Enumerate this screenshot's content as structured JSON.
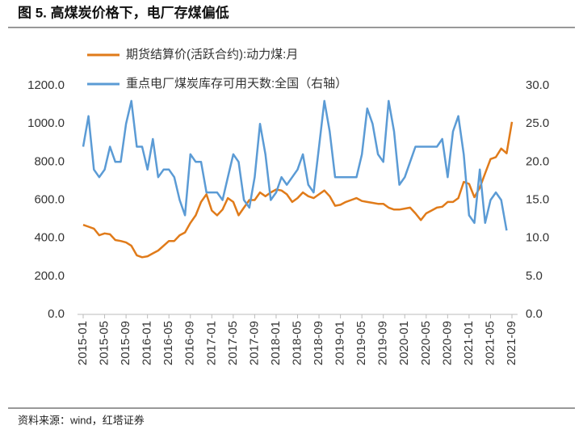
{
  "chart_data": {
    "type": "line",
    "title": "图 5. 高煤炭价格下，电厂存煤偏低",
    "source": "资料来源：wind，红塔证券",
    "categories": [
      "2015-01",
      null,
      null,
      null,
      "2015-05",
      null,
      null,
      null,
      "2015-09",
      null,
      null,
      null,
      "2016-01",
      null,
      null,
      null,
      "2016-05",
      null,
      null,
      null,
      "2016-09",
      null,
      null,
      null,
      "2017-01",
      null,
      null,
      null,
      "2017-05",
      null,
      null,
      null,
      "2017-09",
      null,
      null,
      null,
      "2018-01",
      null,
      null,
      null,
      "2018-05",
      null,
      null,
      null,
      "2018-09",
      null,
      null,
      null,
      "2019-01",
      null,
      null,
      null,
      "2019-05",
      null,
      null,
      null,
      "2019-09",
      null,
      null,
      null,
      "2020-01",
      null,
      null,
      null,
      "2020-05",
      null,
      null,
      null,
      "2020-09",
      null,
      null,
      null,
      "2021-01",
      null,
      null,
      null,
      "2021-05",
      null,
      null,
      null,
      "2021-09"
    ],
    "series": [
      {
        "name": "期货结算价(活跃合约):动力煤:月",
        "color": "#e07b1a",
        "values": [
          470,
          460,
          450,
          415,
          425,
          420,
          390,
          385,
          378,
          360,
          310,
          300,
          305,
          320,
          335,
          360,
          385,
          385,
          415,
          430,
          480,
          520,
          590,
          630,
          545,
          520,
          550,
          610,
          590,
          520,
          560,
          600,
          600,
          640,
          620,
          640,
          655,
          650,
          630,
          590,
          610,
          640,
          620,
          610,
          630,
          650,
          620,
          570,
          575,
          590,
          600,
          610,
          595,
          590,
          585,
          580,
          580,
          560,
          550,
          550,
          555,
          560,
          530,
          495,
          530,
          545,
          560,
          565,
          590,
          590,
          610,
          695,
          685,
          615,
          665,
          740,
          815,
          825,
          870,
          845,
          1010
        ]
      },
      {
        "name": "重点电厂煤炭库存可用天数:全国（右轴）",
        "color": "#5b9bd5",
        "axis": "y2",
        "values": [
          22,
          26,
          19,
          18,
          19,
          22,
          20,
          20,
          25,
          28,
          22,
          22,
          19,
          23,
          18,
          19,
          19,
          18,
          15,
          13,
          21,
          20,
          20,
          16,
          16,
          16,
          15,
          18,
          21,
          20,
          15,
          14,
          18,
          25,
          21,
          15,
          16,
          18,
          17,
          18,
          19,
          21,
          17,
          16,
          22,
          28,
          24,
          18,
          18,
          18,
          18,
          18,
          21,
          27,
          25,
          21,
          20,
          28,
          24,
          17,
          18,
          20,
          22,
          22,
          22,
          22,
          22,
          23,
          18,
          24,
          26,
          21,
          13,
          12,
          19,
          12,
          15,
          16,
          15,
          11,
          null
        ]
      }
    ],
    "ylim": [
      0,
      1200
    ],
    "yticks": [
      {
        "value": 0,
        "label": "0.0"
      },
      {
        "value": 200,
        "label": "200.0"
      },
      {
        "value": 400,
        "label": "400.0"
      },
      {
        "value": 600,
        "label": "600.0"
      },
      {
        "value": 800,
        "label": "800.0"
      },
      {
        "value": 1000,
        "label": "1000.0"
      },
      {
        "value": 1200,
        "label": "1200.0"
      }
    ],
    "y2lim": [
      0,
      30
    ],
    "y2ticks": [
      {
        "value": 0,
        "label": "0.0"
      },
      {
        "value": 5,
        "label": "5.0"
      },
      {
        "value": 10,
        "label": "10.0"
      },
      {
        "value": 15,
        "label": "15.0"
      },
      {
        "value": 20,
        "label": "20.0"
      },
      {
        "value": 25,
        "label": "25.0"
      },
      {
        "value": 30,
        "label": "30.0"
      }
    ],
    "legend": "top-left"
  }
}
